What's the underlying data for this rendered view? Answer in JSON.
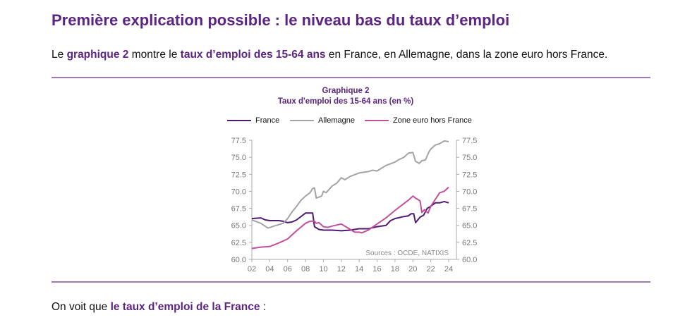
{
  "heading": "Première explication possible : le niveau bas du taux d’emploi",
  "intro": {
    "p1": "Le ",
    "b1": "graphique 2",
    "p2": " montre le ",
    "b2": "taux d’emploi des 15-64 ans",
    "p3": " en France, en Allemagne, dans la zone euro hors France."
  },
  "outro": {
    "p1": "On voit que ",
    "b1": "le taux d’emploi de la France",
    "p2": " :"
  },
  "chart_data": {
    "type": "line",
    "title": "Graphique 2",
    "subtitle": "Taux d'emploi des 15-64 ans (en %)",
    "source": "Sources : OCDE, NATIXIS",
    "xlim": [
      2002,
      2024
    ],
    "ylim": [
      60.0,
      77.5
    ],
    "x_ticks": [
      "02",
      "04",
      "06",
      "08",
      "10",
      "12",
      "14",
      "16",
      "18",
      "20",
      "22",
      "24"
    ],
    "y_ticks": [
      "60.0",
      "62.5",
      "65.0",
      "67.5",
      "70.0",
      "72.5",
      "75.0",
      "77.5"
    ],
    "legend_position": "top",
    "grid": false,
    "series": [
      {
        "name": "France",
        "color": "#4e1a72",
        "points": [
          [
            2002,
            66.0
          ],
          [
            2003,
            66.1
          ],
          [
            2003.5,
            65.8
          ],
          [
            2004,
            65.7
          ],
          [
            2005,
            65.7
          ],
          [
            2005.5,
            65.6
          ],
          [
            2006,
            65.4
          ],
          [
            2006.5,
            65.5
          ],
          [
            2007,
            65.8
          ],
          [
            2008,
            66.8
          ],
          [
            2008.8,
            66.8
          ],
          [
            2009,
            64.8
          ],
          [
            2009.5,
            64.4
          ],
          [
            2010,
            64.3
          ],
          [
            2011,
            64.3
          ],
          [
            2012,
            64.2
          ],
          [
            2013,
            64.3
          ],
          [
            2013.5,
            64.4
          ],
          [
            2014,
            64.5
          ],
          [
            2015,
            64.5
          ],
          [
            2016,
            64.8
          ],
          [
            2017,
            65.0
          ],
          [
            2017.5,
            65.7
          ],
          [
            2018,
            66.0
          ],
          [
            2019,
            66.3
          ],
          [
            2019.5,
            66.4
          ],
          [
            2019.8,
            66.7
          ],
          [
            2020.1,
            66.7
          ],
          [
            2020.3,
            65.4
          ],
          [
            2020.8,
            66.2
          ],
          [
            2021.2,
            66.5
          ],
          [
            2021.6,
            67.5
          ],
          [
            2022,
            67.8
          ],
          [
            2022.5,
            68.3
          ],
          [
            2023,
            68.3
          ],
          [
            2023.5,
            68.5
          ],
          [
            2024,
            68.3
          ]
        ]
      },
      {
        "name": "Allemagne",
        "color": "#a3a3a3",
        "points": [
          [
            2002,
            65.8
          ],
          [
            2003,
            65.3
          ],
          [
            2003.8,
            64.6
          ],
          [
            2004.5,
            64.9
          ],
          [
            2005.5,
            65.3
          ],
          [
            2006,
            66.0
          ],
          [
            2006.5,
            67.0
          ],
          [
            2007,
            67.8
          ],
          [
            2007.5,
            68.7
          ],
          [
            2008,
            69.3
          ],
          [
            2008.5,
            69.8
          ],
          [
            2008.8,
            70.4
          ],
          [
            2009,
            70.5
          ],
          [
            2009.2,
            69.0
          ],
          [
            2009.8,
            69.3
          ],
          [
            2010,
            70.0
          ],
          [
            2010.3,
            69.8
          ],
          [
            2011,
            70.8
          ],
          [
            2011.5,
            71.2
          ],
          [
            2012,
            72.0
          ],
          [
            2012.4,
            71.7
          ],
          [
            2013,
            72.2
          ],
          [
            2014,
            72.7
          ],
          [
            2015,
            72.9
          ],
          [
            2015.5,
            73.1
          ],
          [
            2016,
            73.0
          ],
          [
            2016.5,
            73.4
          ],
          [
            2017,
            73.8
          ],
          [
            2018,
            74.3
          ],
          [
            2018.5,
            74.7
          ],
          [
            2019,
            75.0
          ],
          [
            2019.5,
            75.6
          ],
          [
            2020,
            75.7
          ],
          [
            2020.3,
            74.4
          ],
          [
            2020.7,
            74.1
          ],
          [
            2021,
            74.5
          ],
          [
            2021.4,
            74.6
          ],
          [
            2021.8,
            75.8
          ],
          [
            2022,
            76.2
          ],
          [
            2022.5,
            76.8
          ],
          [
            2023,
            77.0
          ],
          [
            2023.5,
            77.4
          ],
          [
            2024,
            77.3
          ]
        ]
      },
      {
        "name": "Zone euro hors France",
        "color": "#c24f9b",
        "points": [
          [
            2002,
            61.6
          ],
          [
            2003,
            61.8
          ],
          [
            2004,
            61.9
          ],
          [
            2005,
            62.4
          ],
          [
            2006,
            63.0
          ],
          [
            2007,
            64.2
          ],
          [
            2008,
            65.3
          ],
          [
            2008.5,
            65.6
          ],
          [
            2009,
            65.6
          ],
          [
            2009.2,
            65.3
          ],
          [
            2009.5,
            65.4
          ],
          [
            2010,
            64.8
          ],
          [
            2010.5,
            64.7
          ],
          [
            2011,
            64.9
          ],
          [
            2012,
            65.2
          ],
          [
            2012.5,
            64.8
          ],
          [
            2013,
            64.4
          ],
          [
            2013.5,
            64.0
          ],
          [
            2014,
            64.0
          ],
          [
            2014.3,
            63.9
          ],
          [
            2015,
            64.3
          ],
          [
            2016,
            65.2
          ],
          [
            2017,
            66.1
          ],
          [
            2018,
            67.2
          ],
          [
            2019,
            68.2
          ],
          [
            2019.5,
            68.7
          ],
          [
            2020,
            69.3
          ],
          [
            2020.3,
            69.0
          ],
          [
            2020.8,
            68.6
          ],
          [
            2021,
            66.9
          ],
          [
            2021.3,
            67.3
          ],
          [
            2021.7,
            66.8
          ],
          [
            2022,
            67.8
          ],
          [
            2022.5,
            68.8
          ],
          [
            2023,
            69.8
          ],
          [
            2023.5,
            70.0
          ],
          [
            2024,
            70.6
          ]
        ]
      }
    ]
  }
}
